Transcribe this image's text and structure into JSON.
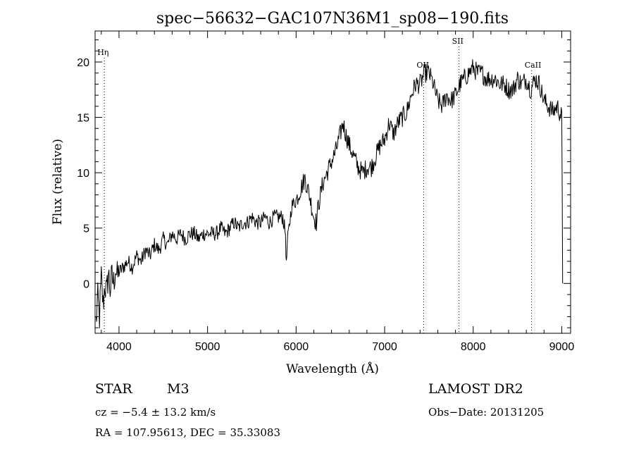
{
  "chart_data": {
    "type": "line",
    "title": "spec−56632−GAC107N36M1_sp08−190.fits",
    "xlabel": "Wavelength (Å)",
    "ylabel": "Flux (relative)",
    "xlim": [
      3730,
      9100
    ],
    "ylim": [
      -4.5,
      22.8
    ],
    "xticks": [
      4000,
      5000,
      6000,
      7000,
      8000,
      9000
    ],
    "yticks": [
      0,
      5,
      10,
      15,
      20
    ],
    "grid": false,
    "series": [
      {
        "x": [
          3740,
          3760,
          3780,
          3800,
          3820,
          3840,
          3860,
          3880,
          3900,
          3920,
          3940,
          3960,
          3980,
          4000,
          4050,
          4100,
          4150,
          4200,
          4250,
          4300,
          4350,
          4400,
          4450,
          4500,
          4550,
          4600,
          4650,
          4700,
          4750,
          4800,
          4850,
          4900,
          4950,
          5000,
          5050,
          5100,
          5150,
          5200,
          5250,
          5300,
          5350,
          5400,
          5450,
          5500,
          5550,
          5600,
          5650,
          5700,
          5750,
          5800,
          5850,
          5880,
          5890,
          5900,
          5920,
          5950,
          6000,
          6050,
          6100,
          6150,
          6200,
          6230,
          6250,
          6300,
          6350,
          6400,
          6450,
          6500,
          6530,
          6560,
          6600,
          6650,
          6700,
          6750,
          6800,
          6850,
          6900,
          6950,
          7000,
          7050,
          7100,
          7150,
          7200,
          7250,
          7300,
          7350,
          7400,
          7450,
          7500,
          7550,
          7600,
          7650,
          7700,
          7750,
          7800,
          7850,
          7900,
          7950,
          8000,
          8050,
          8100,
          8150,
          8200,
          8250,
          8300,
          8350,
          8400,
          8450,
          8500,
          8550,
          8600,
          8650,
          8700,
          8750,
          8800,
          8850,
          8900,
          8950,
          9000,
          9010
        ],
        "y": [
          -3.5,
          -1.5,
          -3.0,
          0.5,
          -2.0,
          0.0,
          -1.0,
          1.0,
          -0.5,
          0.5,
          0.0,
          1.5,
          0.5,
          1.0,
          1.5,
          2.0,
          1.5,
          2.5,
          2.0,
          3.0,
          2.5,
          3.5,
          3.0,
          4.0,
          3.5,
          4.5,
          4.0,
          4.5,
          4.0,
          4.5,
          4.5,
          4.0,
          4.5,
          4.5,
          4.5,
          4.5,
          5.0,
          4.5,
          5.0,
          5.5,
          5.0,
          5.5,
          5.5,
          6.0,
          5.5,
          5.5,
          6.0,
          5.5,
          6.0,
          6.0,
          6.0,
          4.5,
          1.5,
          3.5,
          5.0,
          7.0,
          7.5,
          8.5,
          9.5,
          8.0,
          6.0,
          5.5,
          7.0,
          9.0,
          10.0,
          11.0,
          12.0,
          13.5,
          14.5,
          13.5,
          12.5,
          11.5,
          10.5,
          10.0,
          10.5,
          10.5,
          11.5,
          12.5,
          13.0,
          14.5,
          13.5,
          14.5,
          15.0,
          15.5,
          17.0,
          18.0,
          18.0,
          19.0,
          19.0,
          18.0,
          16.5,
          16.0,
          17.0,
          16.5,
          17.0,
          18.0,
          18.5,
          19.0,
          19.5,
          19.0,
          19.0,
          18.5,
          18.5,
          18.5,
          18.0,
          18.0,
          17.5,
          17.5,
          18.5,
          18.0,
          18.5,
          17.5,
          18.5,
          18.0,
          16.5,
          16.0,
          15.5,
          16.0,
          15.0,
          0.0
        ]
      }
    ],
    "line_markers": [
      {
        "label": "Hη",
        "x": 3835
      },
      {
        "label": "OII",
        "x": 7440
      },
      {
        "label": "SII",
        "x": 7840
      },
      {
        "label": "CaII",
        "x": 8660
      }
    ]
  },
  "info": {
    "object_type": "STAR",
    "subclass": "M3",
    "survey": "LAMOST DR2",
    "cz": "cz = −5.4 ± 13.2 km/s",
    "obs_date": "Obs−Date: 20131205",
    "coords": "RA = 107.95613, DEC =  35.33083"
  }
}
